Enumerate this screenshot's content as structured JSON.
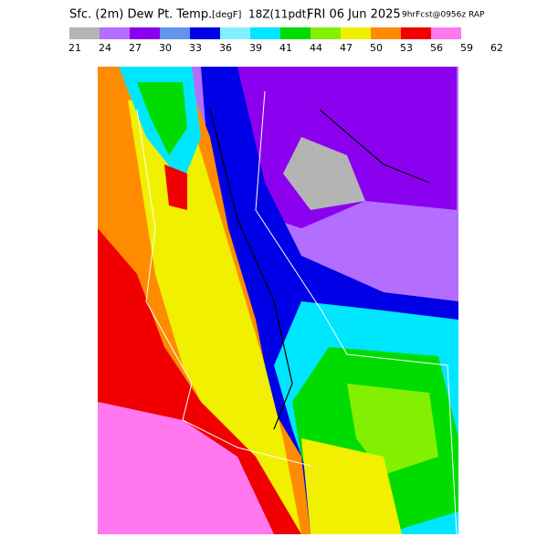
{
  "title": {
    "main": "Sfc. (2m) Dew Pt. Temp.",
    "units": "[degF]",
    "time": "18Z(11pdt)",
    "date": "FRI 06 Jun 2025",
    "forecast": "9hrFcst@0956z RAP"
  },
  "legend": {
    "colors": [
      "#b4b4b4",
      "#b46eff",
      "#8c00f0",
      "#6495ed",
      "#0000e6",
      "#82f0ff",
      "#00e6ff",
      "#00dc00",
      "#82f000",
      "#f0f000",
      "#ff8c00",
      "#f00000",
      "#ff78f0"
    ],
    "labels": [
      "21",
      "24",
      "27",
      "30",
      "33",
      "36",
      "39",
      "41",
      "44",
      "47",
      "50",
      "53",
      "56",
      "59",
      "62"
    ]
  }
}
